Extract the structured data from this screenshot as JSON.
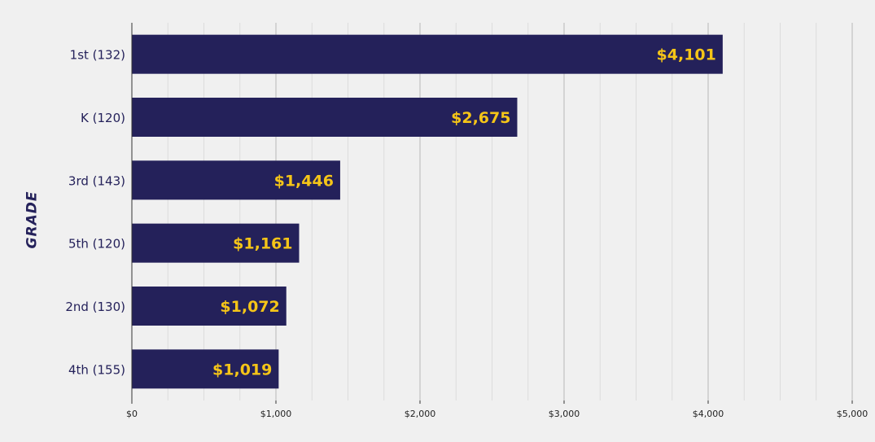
{
  "chart_data": {
    "type": "bar",
    "orientation": "horizontal",
    "title": "",
    "xlabel": "",
    "ylabel": "GRADE",
    "categories": [
      "1st (132)",
      "K (120)",
      "3rd (143)",
      "5th (120)",
      "2nd (130)",
      "4th (155)"
    ],
    "values": [
      4101,
      2675,
      1446,
      1161,
      1072,
      1019
    ],
    "value_labels": [
      "$4,101",
      "$2,675",
      "$1,446",
      "$1,161",
      "$1,072",
      "$1,019"
    ],
    "xlim": [
      0,
      5000
    ],
    "x_ticks": [
      0,
      1000,
      2000,
      3000,
      4000,
      5000
    ],
    "x_tick_labels": [
      "$0",
      "$1,000",
      "$2,000",
      "$3,000",
      "$4,000",
      "$5,000"
    ],
    "grid": true,
    "colors": {
      "bar": "#24215a",
      "value_label": "#f5c518",
      "background": "#f0f0f0",
      "grid_major": "#b8b8b8",
      "grid_minor": "#dcdcdc",
      "axis": "#333333",
      "text": "#24215a"
    }
  }
}
